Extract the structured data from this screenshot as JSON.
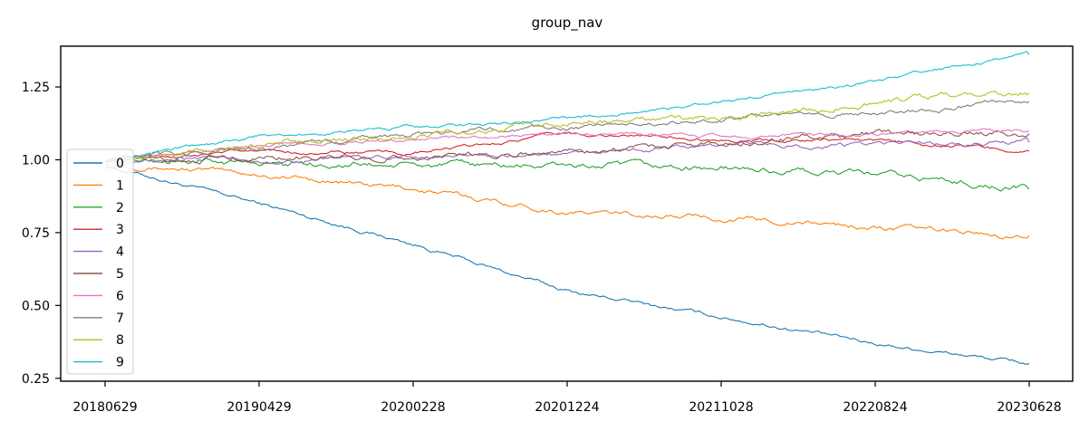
{
  "chart_data": {
    "type": "line",
    "title": "group_nav",
    "xlabel": "",
    "ylabel": "",
    "x_ticks": [
      "20180629",
      "20190429",
      "20200228",
      "20201224",
      "20211028",
      "20220824",
      "20230628"
    ],
    "y_ticks": [
      "0.25",
      "0.50",
      "0.75",
      "1.00",
      "1.25"
    ],
    "ylim": [
      0.24,
      1.39
    ],
    "legend_position": "left",
    "x": [
      "20180629",
      "20190429",
      "20200228",
      "20201224",
      "20211028",
      "20220824",
      "20230628"
    ],
    "series": [
      {
        "name": "0",
        "color": "#1f77b4",
        "values": [
          0.98,
          0.85,
          0.71,
          0.55,
          0.46,
          0.37,
          0.3
        ]
      },
      {
        "name": "1",
        "color": "#ff7f0e",
        "values": [
          0.99,
          0.95,
          0.9,
          0.82,
          0.8,
          0.77,
          0.74
        ]
      },
      {
        "name": "2",
        "color": "#2ca02c",
        "values": [
          1.0,
          0.99,
          0.98,
          0.98,
          0.97,
          0.95,
          0.9
        ]
      },
      {
        "name": "3",
        "color": "#d62728",
        "values": [
          1.0,
          1.03,
          1.02,
          1.09,
          1.07,
          1.07,
          1.03
        ]
      },
      {
        "name": "4",
        "color": "#9467bd",
        "values": [
          1.0,
          1.0,
          1.01,
          1.02,
          1.05,
          1.05,
          1.06
        ]
      },
      {
        "name": "5",
        "color": "#8c564b",
        "values": [
          1.0,
          1.01,
          1.01,
          1.03,
          1.06,
          1.09,
          1.09
        ]
      },
      {
        "name": "6",
        "color": "#e377c2",
        "values": [
          1.0,
          1.05,
          1.07,
          1.09,
          1.08,
          1.09,
          1.1
        ]
      },
      {
        "name": "7",
        "color": "#7f7f7f",
        "values": [
          1.0,
          1.04,
          1.09,
          1.11,
          1.14,
          1.16,
          1.2
        ]
      },
      {
        "name": "8",
        "color": "#bcbd22",
        "values": [
          1.0,
          1.05,
          1.08,
          1.13,
          1.14,
          1.2,
          1.23
        ]
      },
      {
        "name": "9",
        "color": "#17becf",
        "values": [
          1.0,
          1.08,
          1.11,
          1.14,
          1.2,
          1.27,
          1.36
        ]
      }
    ]
  }
}
